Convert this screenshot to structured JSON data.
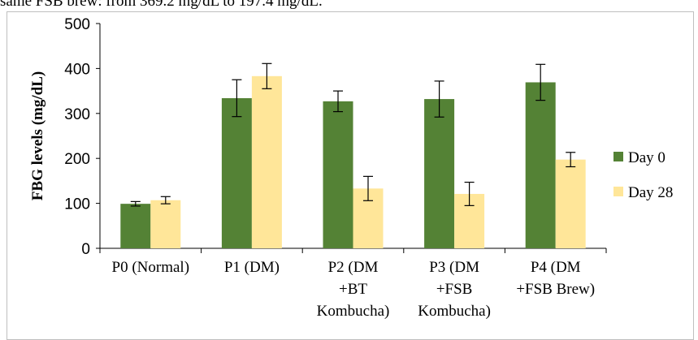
{
  "context_text": "same FSB brew: from 369.2 mg/dL to 197.4 mg/dL.",
  "chart_data": {
    "type": "bar",
    "categories": [
      [
        "P0 (Normal)"
      ],
      [
        "P1 (DM)"
      ],
      [
        "P2 (DM",
        "+BT",
        "Kombucha)"
      ],
      [
        "P3 (DM",
        "+FSB",
        "Kombucha)"
      ],
      [
        "P4 (DM",
        "+FSB Brew)"
      ]
    ],
    "series": [
      {
        "name": "Day 0",
        "color": "#548235",
        "values": [
          99,
          334,
          327,
          332,
          369.2
        ],
        "errors": [
          5,
          41,
          23,
          40,
          40
        ]
      },
      {
        "name": "Day 28",
        "color": "#ffe699",
        "values": [
          107,
          383,
          133,
          121,
          197.4
        ],
        "errors": [
          8,
          28,
          27,
          26,
          16
        ]
      }
    ],
    "ylabel": "FBG levels (mg/dL)",
    "xlabel": "",
    "ylim": [
      0,
      500
    ],
    "yticks": [
      0,
      100,
      200,
      300,
      400,
      500
    ],
    "grid": false,
    "legend_position": "right"
  }
}
